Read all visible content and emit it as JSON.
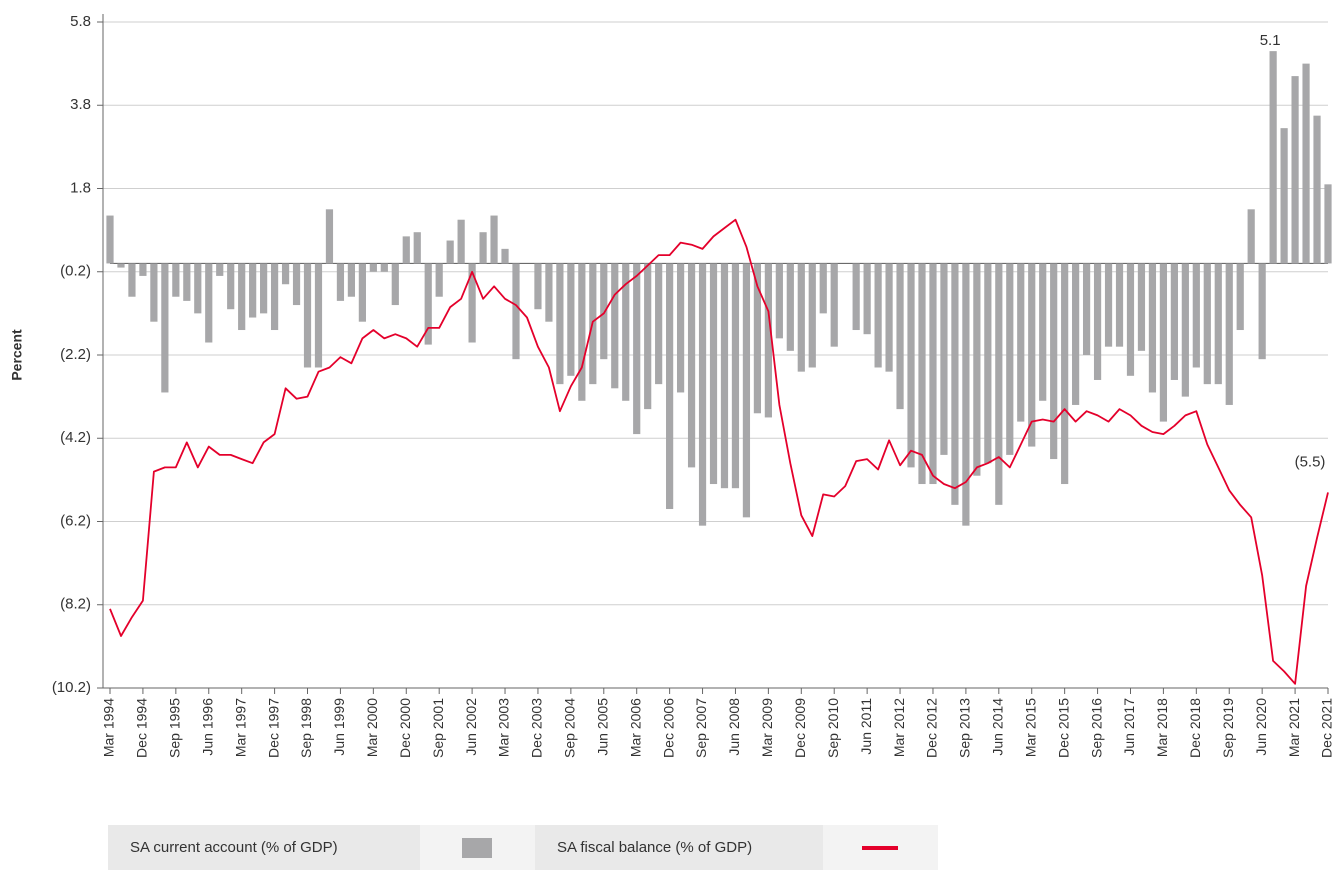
{
  "chart_data": {
    "type": "bar",
    "y_label": "Percent",
    "categories": [
      "Mar 1994",
      null,
      null,
      "Dec 1994",
      null,
      null,
      "Sep 1995",
      null,
      null,
      "Jun 1996",
      null,
      null,
      "Mar 1997",
      null,
      null,
      "Dec 1997",
      null,
      null,
      "Sep 1998",
      null,
      null,
      "Jun 1999",
      null,
      null,
      "Mar 2000",
      null,
      null,
      "Dec 2000",
      null,
      null,
      "Sep 2001",
      null,
      null,
      "Jun 2002",
      null,
      null,
      "Mar 2003",
      null,
      null,
      "Dec 2003",
      null,
      null,
      "Sep 2004",
      null,
      null,
      "Jun 2005",
      null,
      null,
      "Mar 2006",
      null,
      null,
      "Dec 2006",
      null,
      null,
      "Sep 2007",
      null,
      null,
      "Jun 2008",
      null,
      null,
      "Mar 2009",
      null,
      null,
      "Dec 2009",
      null,
      null,
      "Sep 2010",
      null,
      null,
      "Jun 2011",
      null,
      null,
      "Mar 2012",
      null,
      null,
      "Dec 2012",
      null,
      null,
      "Sep 2013",
      null,
      null,
      "Jun 2014",
      null,
      null,
      "Mar 2015",
      null,
      null,
      "Dec 2015",
      null,
      null,
      "Sep 2016",
      null,
      null,
      "Jun 2017",
      null,
      null,
      "Mar 2018",
      null,
      null,
      "Dec 2018",
      null,
      null,
      "Sep 2019",
      null,
      null,
      "Jun 2020",
      null,
      null,
      "Mar 2021",
      null,
      null,
      "Dec 2021"
    ],
    "series": [
      {
        "name": "SA current account (% of GDP)",
        "type": "bar",
        "color": "#a7a7a9",
        "values": [
          1.15,
          -0.1,
          -0.8,
          -0.3,
          -1.4,
          -3.1,
          -0.8,
          -0.9,
          -1.2,
          -1.9,
          -0.3,
          -1.1,
          -1.6,
          -1.3,
          -1.2,
          -1.6,
          -0.5,
          -1.0,
          -2.5,
          -2.5,
          1.3,
          -0.9,
          -0.8,
          -1.4,
          -0.2,
          -0.2,
          -1.0,
          0.65,
          0.75,
          -1.95,
          -0.8,
          0.55,
          1.05,
          -1.9,
          0.75,
          1.15,
          0.35,
          -2.3,
          0,
          -1.1,
          -1.4,
          -2.9,
          -2.7,
          -3.3,
          -2.9,
          -2.3,
          -3.0,
          -3.3,
          -4.1,
          -3.5,
          -2.9,
          -5.9,
          -3.1,
          -4.9,
          -6.3,
          -5.3,
          -5.4,
          -5.4,
          -6.1,
          -3.6,
          -3.7,
          -1.8,
          -2.1,
          -2.6,
          -2.5,
          -1.2,
          -2.0,
          0,
          -1.6,
          -1.7,
          -2.5,
          -2.6,
          -3.5,
          -4.9,
          -5.3,
          -5.3,
          -4.6,
          -5.8,
          -6.3,
          -5.1,
          -4.8,
          -5.8,
          -4.6,
          -3.8,
          -4.4,
          -3.3,
          -4.7,
          -5.3,
          -3.4,
          -2.2,
          -2.8,
          -2.0,
          -2.0,
          -2.7,
          -2.1,
          -3.1,
          -3.8,
          -2.8,
          -3.2,
          -2.5,
          -2.9,
          -2.9,
          -3.4,
          -1.6,
          1.3,
          -2.3,
          5.1,
          3.25,
          4.5,
          4.8,
          3.55,
          1.9
        ],
        "value_labels": {
          "106": "5.1"
        }
      },
      {
        "name": "SA fiscal balance (% of GDP)",
        "type": "line",
        "color": "#e4002b",
        "values": [
          -8.3,
          -8.95,
          -8.5,
          -8.1,
          -5.0,
          -4.9,
          -4.9,
          -4.3,
          -4.9,
          -4.4,
          -4.6,
          -4.6,
          -4.7,
          -4.8,
          -4.3,
          -4.1,
          -3.0,
          -3.25,
          -3.2,
          -2.6,
          -2.5,
          -2.25,
          -2.4,
          -1.8,
          -1.6,
          -1.8,
          -1.7,
          -1.8,
          -2.0,
          -1.55,
          -1.55,
          -1.05,
          -0.85,
          -0.2,
          -0.85,
          -0.55,
          -0.85,
          -1.0,
          -1.3,
          -2.0,
          -2.5,
          -3.55,
          -2.95,
          -2.5,
          -1.4,
          -1.2,
          -0.75,
          -0.5,
          -0.3,
          -0.05,
          0.2,
          0.2,
          0.5,
          0.45,
          0.35,
          0.65,
          0.85,
          1.05,
          0.4,
          -0.55,
          -1.15,
          -3.4,
          -4.8,
          -6.05,
          -6.55,
          -5.55,
          -5.6,
          -5.35,
          -4.75,
          -4.7,
          -4.95,
          -4.25,
          -4.85,
          -4.5,
          -4.6,
          -5.1,
          -5.3,
          -5.4,
          -5.25,
          -4.9,
          -4.8,
          -4.65,
          -4.9,
          -4.35,
          -3.8,
          -3.75,
          -3.8,
          -3.5,
          -3.8,
          -3.55,
          -3.65,
          -3.8,
          -3.5,
          -3.65,
          -3.9,
          -4.05,
          -4.1,
          -3.9,
          -3.65,
          -3.55,
          -4.35,
          -4.9,
          -5.45,
          -5.8,
          -6.1,
          -7.5,
          -9.55,
          -9.8,
          -10.1,
          -7.75,
          -6.6,
          -5.5
        ],
        "value_labels": {
          "111": "(5.5)"
        }
      }
    ],
    "ylim": [
      -10.2,
      5.8
    ],
    "yticks": [
      5.8,
      3.8,
      1.8,
      {
        "value": -0.2,
        "label": "(0.2)"
      },
      {
        "value": -2.2,
        "label": "(2.2)"
      },
      {
        "value": -4.2,
        "label": "(4.2)"
      },
      {
        "value": -6.2,
        "label": "(6.2)"
      },
      {
        "value": -8.2,
        "label": "(8.2)"
      },
      {
        "value": -10.2,
        "label": "(10.2)"
      }
    ],
    "grid": true,
    "legend": "bottom"
  }
}
